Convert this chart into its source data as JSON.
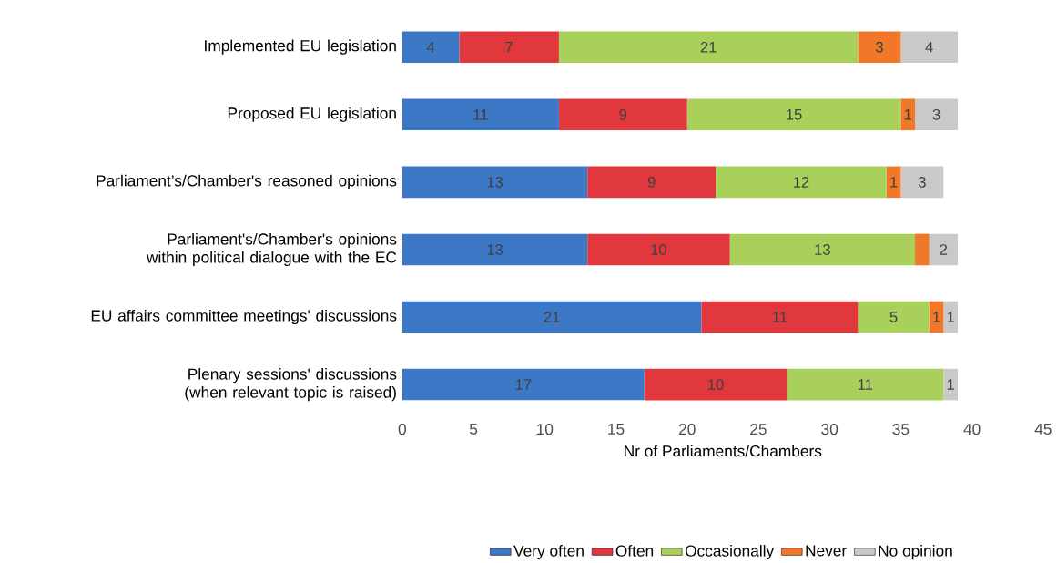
{
  "chart_data": {
    "type": "bar",
    "orientation": "horizontal",
    "stacked": true,
    "xlabel": "Nr of Parliaments/Chambers",
    "categories": [
      "Implemented EU legislation",
      "Proposed EU legislation",
      "Parliament’s/Chamber's reasoned opinions",
      "Parliament's/Chamber's opinions within political dialogue with the EC",
      "EU affairs committee meetings' discussions",
      "Plenary sessions' discussions (when relevant topic is raised)"
    ],
    "series": [
      {
        "name": "Very often",
        "color": "#3d78c6",
        "values": [
          4,
          11,
          13,
          13,
          21,
          17
        ],
        "value_labels": [
          "4",
          "11",
          "13",
          "13",
          "21",
          "17"
        ]
      },
      {
        "name": "Often",
        "color": "#e0383c",
        "values": [
          7,
          9,
          9,
          10,
          11,
          10
        ],
        "value_labels": [
          "7",
          "9",
          "9",
          "10",
          "11",
          "10"
        ]
      },
      {
        "name": "Occasionally",
        "color": "#a8d05a",
        "values": [
          21,
          15,
          12,
          13,
          5,
          11
        ],
        "value_labels": [
          "21",
          "15",
          "12",
          "13",
          "5",
          "11"
        ]
      },
      {
        "name": "Never",
        "color": "#f07828",
        "values": [
          3,
          1,
          1,
          1,
          1,
          0
        ],
        "value_labels": [
          "3",
          "1",
          "1",
          null,
          "1",
          null
        ]
      },
      {
        "name": "No opinion",
        "color": "#c9c9c9",
        "values": [
          4,
          3,
          3,
          2,
          1,
          1
        ],
        "value_labels": [
          "4",
          "3",
          "3",
          "2",
          "1",
          "1"
        ]
      }
    ],
    "xlim": [
      0,
      45
    ],
    "xticks": [
      0,
      5,
      10,
      15,
      20,
      25,
      30,
      35,
      40,
      45
    ],
    "grid": false,
    "legend": "bottom"
  }
}
